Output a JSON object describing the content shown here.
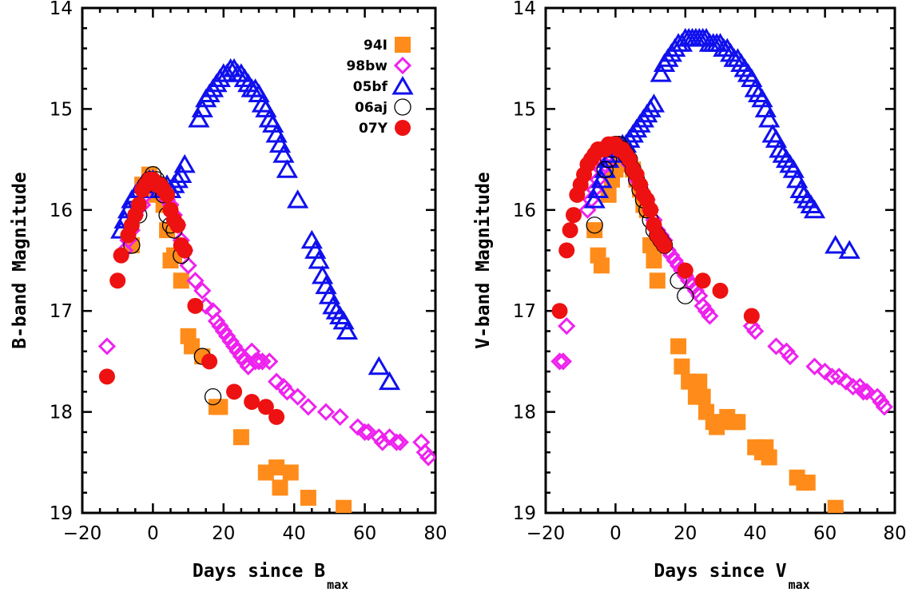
{
  "chart_data": [
    {
      "type": "scatter",
      "xlabel": "Days since B",
      "xlabel_sub": "max",
      "ylabel": "B-band Magnitude",
      "xlim": [
        -20,
        80
      ],
      "ylim": [
        19,
        14
      ],
      "y_inverted": true,
      "xticks": [
        -20,
        0,
        20,
        40,
        60,
        80
      ],
      "yticks": [
        14,
        15,
        16,
        17,
        18,
        19
      ],
      "legend_position": "top-right",
      "series": [
        {
          "name": "94I",
          "marker": "square-filled",
          "color": "#ff8c1a",
          "x": [
            -6,
            -3,
            -1,
            1,
            3,
            4,
            5,
            6,
            8,
            10,
            11,
            14,
            18,
            19,
            25,
            32,
            35,
            36,
            39,
            44,
            54
          ],
          "y": [
            16.35,
            15.75,
            15.65,
            15.85,
            15.95,
            16.2,
            16.5,
            16.45,
            16.7,
            17.25,
            17.35,
            17.45,
            17.95,
            17.95,
            18.25,
            18.6,
            18.55,
            18.75,
            18.6,
            18.85,
            18.95
          ]
        },
        {
          "name": "98bw",
          "marker": "diamond-open",
          "color": "#ee22ee",
          "x": [
            -13,
            -8,
            -7,
            -6,
            -5,
            -3,
            -2,
            -1,
            0,
            1,
            2,
            3,
            4,
            5,
            6,
            7,
            8,
            9,
            10,
            12,
            14,
            15,
            17,
            18,
            19,
            20,
            21,
            22,
            23,
            24,
            25,
            26,
            27,
            28,
            29,
            30,
            31,
            33,
            35,
            37,
            38,
            41,
            44,
            49,
            53,
            58,
            60,
            61,
            64,
            65,
            67,
            69,
            70,
            76,
            77,
            78
          ],
          "y": [
            17.35,
            16.4,
            16.3,
            16.2,
            16.05,
            15.95,
            15.85,
            15.75,
            15.7,
            15.75,
            15.8,
            15.8,
            15.9,
            15.95,
            16.05,
            16.15,
            16.3,
            16.4,
            16.55,
            16.7,
            16.8,
            16.95,
            17.0,
            17.1,
            17.15,
            17.2,
            17.25,
            17.3,
            17.35,
            17.4,
            17.45,
            17.5,
            17.55,
            17.4,
            17.5,
            17.5,
            17.5,
            17.5,
            17.7,
            17.75,
            17.8,
            17.85,
            17.95,
            18.0,
            18.05,
            18.15,
            18.2,
            18.2,
            18.25,
            18.3,
            18.25,
            18.3,
            18.3,
            18.3,
            18.4,
            18.45
          ]
        },
        {
          "name": "05bf",
          "marker": "triangle-open",
          "color": "#1010ee",
          "x": [
            -9,
            -8,
            -7,
            -6,
            -5,
            -4,
            -3,
            -2,
            -1,
            0,
            1,
            2,
            3,
            4,
            5,
            6,
            7,
            8,
            9,
            13,
            14,
            15,
            16,
            17,
            18,
            19,
            20,
            21,
            22,
            23,
            24,
            25,
            26,
            27,
            28,
            29,
            30,
            31,
            32,
            33,
            34,
            35,
            36,
            37,
            38,
            41,
            45,
            46,
            47,
            48,
            49,
            50,
            51,
            52,
            53,
            54,
            55,
            64,
            67
          ],
          "y": [
            16.2,
            16.1,
            16.0,
            15.9,
            15.85,
            15.8,
            15.75,
            15.75,
            15.7,
            15.7,
            15.75,
            15.8,
            15.8,
            15.75,
            15.8,
            15.75,
            15.7,
            15.65,
            15.55,
            15.1,
            15.0,
            14.9,
            14.85,
            14.8,
            14.75,
            14.7,
            14.65,
            14.65,
            14.6,
            14.6,
            14.65,
            14.65,
            14.7,
            14.75,
            14.8,
            14.8,
            14.85,
            14.95,
            15.0,
            15.1,
            15.15,
            15.25,
            15.35,
            15.45,
            15.6,
            15.9,
            16.3,
            16.4,
            16.5,
            16.65,
            16.75,
            16.85,
            16.95,
            17.0,
            17.05,
            17.1,
            17.2,
            17.55,
            17.7
          ]
        },
        {
          "name": "06aj",
          "marker": "circle-open",
          "color": "#000000",
          "x": [
            -6,
            -4,
            -2,
            -1,
            0,
            1,
            2,
            3,
            4,
            5,
            6,
            8,
            14,
            17
          ],
          "y": [
            16.35,
            16.05,
            15.75,
            15.7,
            15.65,
            15.7,
            15.75,
            15.85,
            16.05,
            16.15,
            16.2,
            16.45,
            17.45,
            17.85
          ]
        },
        {
          "name": "07Y",
          "marker": "circle-filled",
          "color": "#ee1111",
          "x": [
            -13,
            -10,
            -9,
            -7,
            -6,
            -5,
            -4,
            -3,
            -2,
            -1,
            0,
            1,
            2,
            3,
            4,
            5,
            6,
            7,
            8,
            9,
            12,
            16,
            23,
            28,
            32,
            35
          ],
          "y": [
            17.65,
            16.7,
            16.45,
            16.25,
            16.15,
            16.05,
            15.95,
            15.8,
            15.75,
            15.7,
            15.7,
            15.75,
            15.75,
            15.8,
            15.85,
            16.0,
            16.1,
            16.15,
            16.35,
            16.4,
            16.95,
            17.5,
            17.8,
            17.9,
            17.95,
            18.05
          ]
        }
      ]
    },
    {
      "type": "scatter",
      "xlabel": "Days since V",
      "xlabel_sub": "max",
      "ylabel": "V-band Magnitude",
      "xlim": [
        -20,
        80
      ],
      "ylim": [
        19,
        14
      ],
      "y_inverted": true,
      "xticks": [
        -20,
        0,
        20,
        40,
        60,
        80
      ],
      "yticks": [
        14,
        15,
        16,
        17,
        18,
        19
      ],
      "series": [
        {
          "name": "94I",
          "marker": "square-filled",
          "color": "#ff8c1a",
          "x": [
            -6,
            -5,
            -4,
            -2,
            -1,
            0,
            1,
            2,
            3,
            4,
            5,
            6,
            7,
            8,
            9,
            10,
            11,
            12,
            18,
            19,
            21,
            23,
            24,
            25,
            26,
            28,
            29,
            30,
            32,
            34,
            35,
            40,
            42,
            43,
            44,
            52,
            54,
            55,
            63
          ],
          "y": [
            16.2,
            16.45,
            16.55,
            15.85,
            15.7,
            15.6,
            15.5,
            15.45,
            15.5,
            15.55,
            15.6,
            15.7,
            15.8,
            15.95,
            16.0,
            16.35,
            16.5,
            16.7,
            17.35,
            17.55,
            17.7,
            17.85,
            17.7,
            17.85,
            18.0,
            18.1,
            18.15,
            18.1,
            18.05,
            18.1,
            18.1,
            18.35,
            18.4,
            18.35,
            18.45,
            18.65,
            18.7,
            18.7,
            18.95
          ]
        },
        {
          "name": "98bw",
          "marker": "diamond-open",
          "color": "#ee22ee",
          "x": [
            -16,
            -15,
            -14,
            -8,
            -7,
            -6,
            -5,
            -4,
            -3,
            -2,
            -1,
            0,
            1,
            2,
            3,
            4,
            5,
            6,
            7,
            8,
            9,
            10,
            11,
            12,
            13,
            14,
            15,
            16,
            17,
            18,
            19,
            20,
            21,
            22,
            23,
            24,
            25,
            26,
            27,
            39,
            40,
            46,
            49,
            50,
            57,
            60,
            62,
            64,
            66,
            68,
            70,
            71,
            72,
            75,
            76,
            77
          ],
          "y": [
            17.5,
            17.5,
            17.15,
            16.0,
            15.9,
            15.8,
            15.7,
            15.6,
            15.55,
            15.45,
            15.4,
            15.4,
            15.4,
            15.45,
            15.5,
            15.55,
            15.6,
            15.7,
            15.75,
            15.85,
            15.9,
            16.0,
            16.1,
            16.2,
            16.25,
            16.3,
            16.4,
            16.45,
            16.5,
            16.55,
            16.6,
            16.65,
            16.7,
            16.75,
            16.8,
            16.85,
            16.95,
            17.0,
            17.05,
            17.15,
            17.2,
            17.35,
            17.4,
            17.45,
            17.55,
            17.6,
            17.65,
            17.65,
            17.7,
            17.75,
            17.75,
            17.8,
            17.8,
            17.85,
            17.9,
            17.95
          ]
        },
        {
          "name": "05bf",
          "marker": "triangle-open",
          "color": "#1010ee",
          "x": [
            -6,
            -5,
            -4,
            -3,
            -2,
            -1,
            0,
            1,
            2,
            3,
            4,
            5,
            6,
            7,
            8,
            9,
            10,
            11,
            13,
            14,
            15,
            16,
            17,
            18,
            19,
            20,
            21,
            22,
            23,
            24,
            25,
            26,
            27,
            28,
            29,
            30,
            31,
            32,
            33,
            34,
            35,
            36,
            37,
            38,
            39,
            40,
            41,
            42,
            43,
            44,
            45,
            46,
            47,
            48,
            49,
            50,
            51,
            52,
            53,
            54,
            55,
            56,
            57,
            63,
            67
          ],
          "y": [
            15.9,
            15.8,
            15.7,
            15.6,
            15.5,
            15.45,
            15.4,
            15.4,
            15.35,
            15.35,
            15.3,
            15.25,
            15.2,
            15.15,
            15.1,
            15.05,
            15.0,
            14.95,
            14.65,
            14.55,
            14.5,
            14.45,
            14.4,
            14.35,
            14.35,
            14.3,
            14.3,
            14.3,
            14.3,
            14.3,
            14.3,
            14.3,
            14.35,
            14.35,
            14.35,
            14.35,
            14.4,
            14.4,
            14.45,
            14.5,
            14.5,
            14.55,
            14.6,
            14.65,
            14.7,
            14.8,
            14.85,
            14.9,
            15.0,
            15.1,
            15.25,
            15.3,
            15.4,
            15.45,
            15.5,
            15.55,
            15.6,
            15.7,
            15.8,
            15.85,
            15.9,
            15.95,
            16.0,
            16.35,
            16.4
          ]
        },
        {
          "name": "06aj",
          "marker": "circle-open",
          "color": "#000000",
          "x": [
            -6,
            -3,
            -2,
            -1,
            0,
            1,
            2,
            3,
            4,
            5,
            6,
            7,
            8,
            9,
            10,
            11,
            12,
            13,
            14,
            18,
            20
          ],
          "y": [
            16.15,
            15.6,
            15.5,
            15.4,
            15.35,
            15.35,
            15.4,
            15.45,
            15.5,
            15.6,
            15.7,
            15.8,
            15.9,
            16.0,
            16.1,
            16.2,
            16.25,
            16.3,
            16.35,
            16.7,
            16.85
          ]
        },
        {
          "name": "07Y",
          "marker": "circle-filled",
          "color": "#ee1111",
          "x": [
            -16,
            -14,
            -13,
            -12,
            -11,
            -10,
            -9,
            -8,
            -7,
            -6,
            -5,
            -4,
            -3,
            -2,
            -1,
            0,
            1,
            2,
            3,
            4,
            5,
            6,
            7,
            8,
            9,
            10,
            11,
            12,
            13,
            14,
            20,
            25,
            30,
            39
          ],
          "y": [
            17.0,
            16.4,
            16.2,
            16.05,
            15.85,
            15.75,
            15.65,
            15.55,
            15.5,
            15.45,
            15.4,
            15.4,
            15.4,
            15.35,
            15.35,
            15.35,
            15.4,
            15.4,
            15.45,
            15.5,
            15.6,
            15.65,
            15.75,
            15.85,
            15.9,
            16.0,
            16.15,
            16.25,
            16.3,
            16.35,
            16.6,
            16.7,
            16.8,
            17.05
          ]
        }
      ]
    }
  ],
  "legend_entries": [
    "94I",
    "98bw",
    "05bf",
    "06aj",
    "07Y"
  ]
}
